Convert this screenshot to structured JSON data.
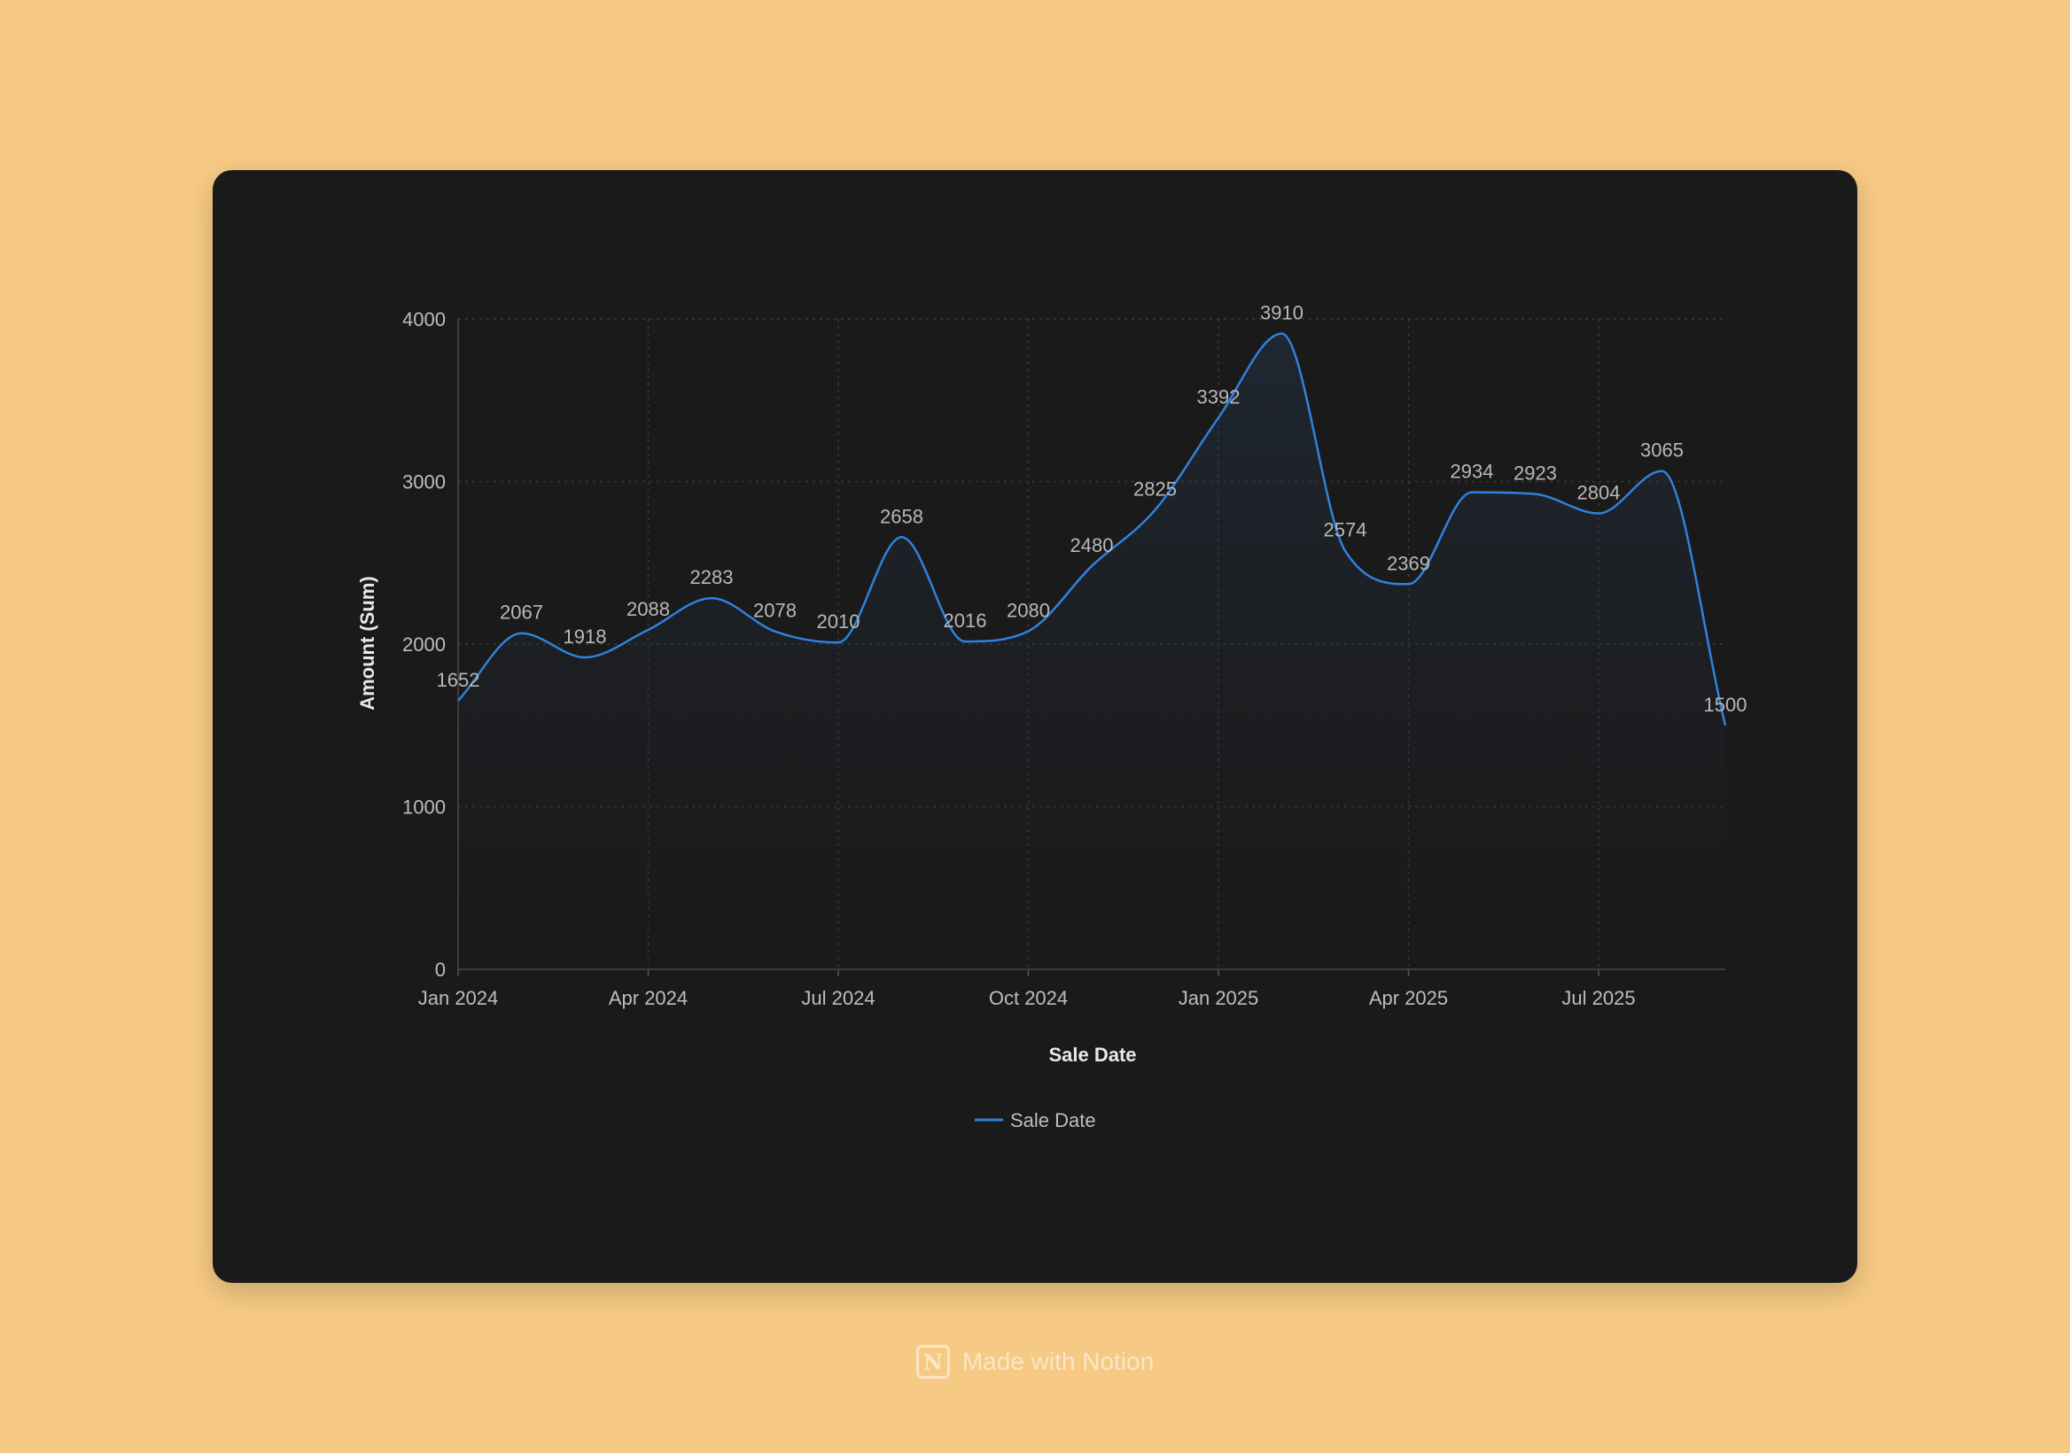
{
  "chart_data": {
    "type": "area",
    "xlabel": "Sale Date",
    "ylabel": "Amount (Sum)",
    "legend": {
      "label": "Sale Date",
      "position": "bottom-center"
    },
    "line_color": "#2f82de",
    "ylim": [
      0,
      4000
    ],
    "y_ticks": [
      "0",
      "1000",
      "2000",
      "3000",
      "4000"
    ],
    "x_tick_labels": [
      "Jan 2024",
      "Apr 2024",
      "Jul 2024",
      "Oct 2024",
      "Jan 2025",
      "Apr 2025",
      "Jul 2025"
    ],
    "grid": true,
    "x": [
      "Jan 2024",
      "Feb 2024",
      "Mar 2024",
      "Apr 2024",
      "May 2024",
      "Jun 2024",
      "Jul 2024",
      "Aug 2024",
      "Sep 2024",
      "Oct 2024",
      "Nov 2024",
      "Dec 2024",
      "Jan 2025",
      "Feb 2025",
      "Mar 2025",
      "Apr 2025",
      "May 2025",
      "Jun 2025",
      "Jul 2025",
      "Aug 2025",
      "Sep 2025"
    ],
    "values": [
      1652,
      2067,
      1918,
      2088,
      2283,
      2078,
      2010,
      2658,
      2016,
      2080,
      2480,
      2825,
      3392,
      3910,
      2574,
      2369,
      2934,
      2923,
      2804,
      3065,
      1500
    ]
  },
  "footer": {
    "logo_letter": "N",
    "text": "Made with Notion"
  }
}
